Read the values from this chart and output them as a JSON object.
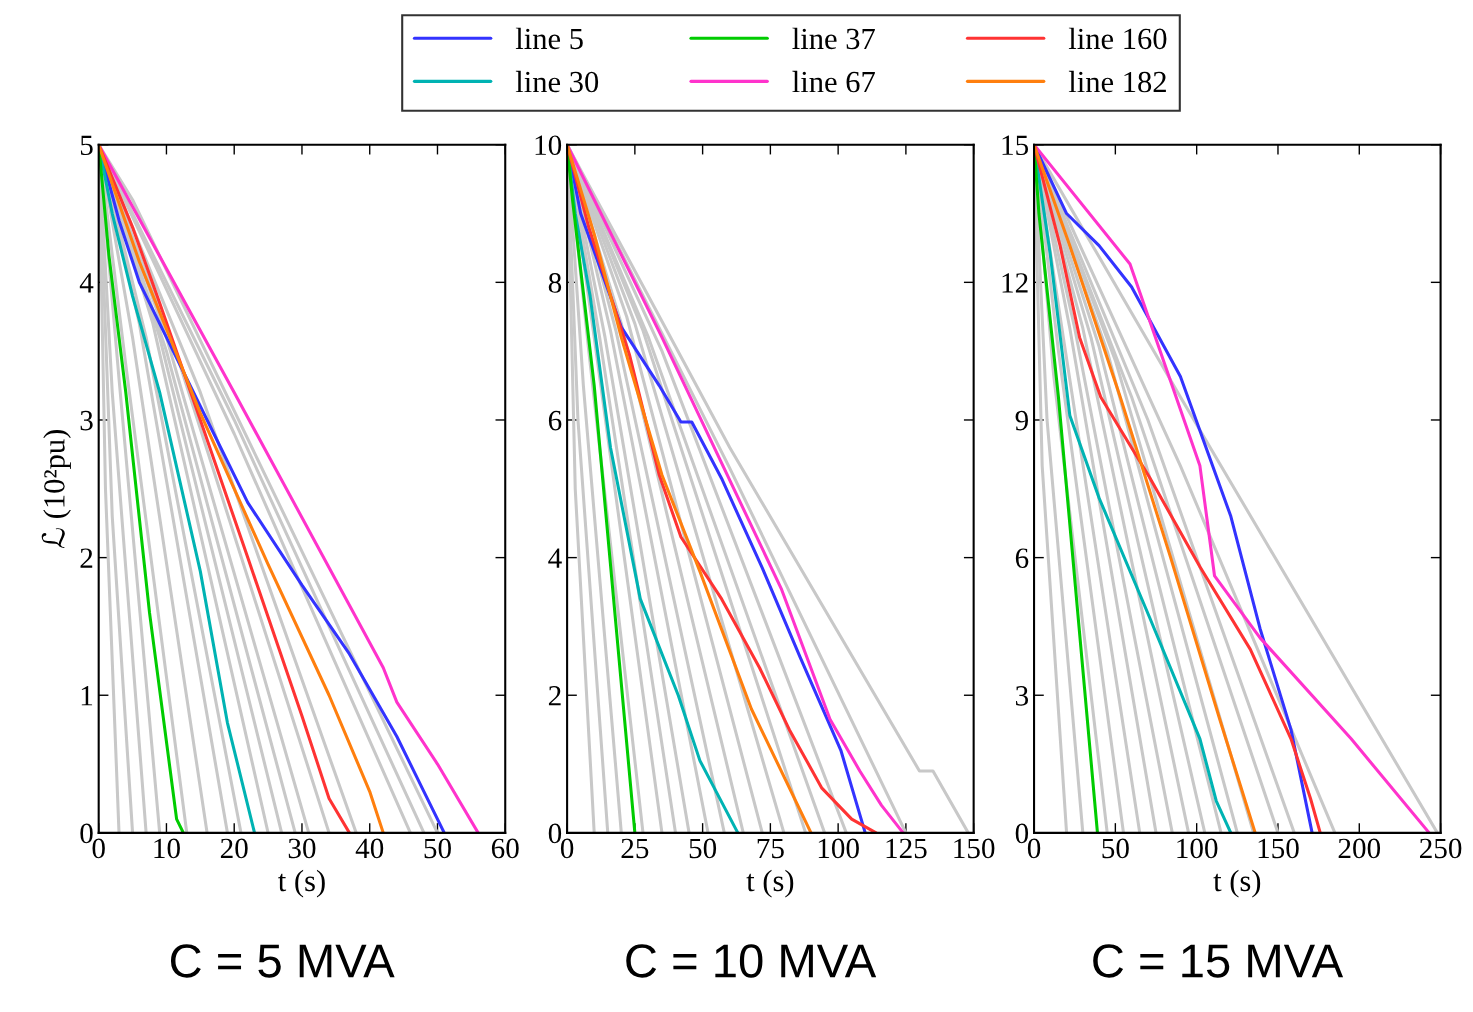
{
  "chart_data": [
    {
      "type": "line",
      "title": "C = 5 MVA",
      "xlabel": "t (s)",
      "ylabel": "ℒ (10²pu)",
      "xlim": [
        0,
        60
      ],
      "ylim": [
        0,
        5
      ],
      "xticks": [
        0,
        10,
        20,
        30,
        40,
        50,
        60
      ],
      "yticks": [
        0,
        1,
        2,
        3,
        4,
        5
      ],
      "legend": "top",
      "series": [
        {
          "color": "#c8c8c8",
          "x": [
            0,
            1,
            3
          ],
          "values": [
            5,
            2.5,
            0
          ]
        },
        {
          "color": "#c8c8c8",
          "x": [
            0,
            2,
            5
          ],
          "values": [
            5,
            2.3,
            0
          ]
        },
        {
          "color": "#c8c8c8",
          "x": [
            0,
            2,
            7
          ],
          "values": [
            5,
            3.2,
            0
          ]
        },
        {
          "color": "#c8c8c8",
          "x": [
            0,
            3,
            9
          ],
          "values": [
            5,
            3.3,
            0
          ]
        },
        {
          "color": "#c8c8c8",
          "x": [
            0,
            4,
            13
          ],
          "values": [
            5,
            3.4,
            0
          ]
        },
        {
          "color": "#c8c8c8",
          "x": [
            0,
            5,
            16
          ],
          "values": [
            5,
            3.6,
            0
          ]
        },
        {
          "color": "#c8c8c8",
          "x": [
            0,
            6,
            19
          ],
          "values": [
            5,
            3.7,
            0
          ]
        },
        {
          "color": "#c8c8c8",
          "x": [
            0,
            7,
            21
          ],
          "values": [
            5,
            3.6,
            0
          ]
        },
        {
          "color": "#c8c8c8",
          "x": [
            0,
            8,
            25
          ],
          "values": [
            5,
            3.7,
            0
          ]
        },
        {
          "color": "#c8c8c8",
          "x": [
            0,
            9,
            27
          ],
          "values": [
            5,
            3.6,
            0
          ]
        },
        {
          "color": "#c8c8c8",
          "x": [
            0,
            10,
            29
          ],
          "values": [
            5,
            3.5,
            0
          ]
        },
        {
          "color": "#c8c8c8",
          "x": [
            0,
            10,
            31
          ],
          "values": [
            5,
            3.6,
            0
          ]
        },
        {
          "color": "#c8c8c8",
          "x": [
            0,
            12,
            34
          ],
          "values": [
            5,
            3.4,
            0
          ]
        },
        {
          "color": "#c8c8c8",
          "x": [
            0,
            15,
            38
          ],
          "values": [
            5,
            3.2,
            0
          ]
        },
        {
          "color": "#c8c8c8",
          "x": [
            0,
            20,
            46
          ],
          "values": [
            5,
            2.9,
            0
          ]
        },
        {
          "color": "#c8c8c8",
          "x": [
            0,
            20,
            48
          ],
          "values": [
            5,
            3.0,
            0
          ]
        },
        {
          "color": "#c8c8c8",
          "x": [
            0,
            5,
            50
          ],
          "values": [
            5,
            4.6,
            0
          ]
        },
        {
          "name": "line 5",
          "color": "#3333ff",
          "x": [
            0,
            3,
            6,
            12,
            16,
            22,
            30,
            37,
            44,
            48,
            51
          ],
          "values": [
            5,
            4.45,
            4.0,
            3.4,
            3.0,
            2.4,
            1.8,
            1.3,
            0.7,
            0.3,
            0
          ]
        },
        {
          "name": "line 30",
          "color": "#00b3b3",
          "x": [
            0,
            2,
            5,
            9,
            15,
            19,
            23
          ],
          "values": [
            5,
            4.5,
            3.9,
            3.2,
            1.9,
            0.8,
            0
          ]
        },
        {
          "name": "line 37",
          "color": "#00cc00",
          "x": [
            0,
            1.5,
            4,
            7.5,
            11.5,
            12.5
          ],
          "values": [
            5,
            4.2,
            3.2,
            1.6,
            0.1,
            0
          ]
        },
        {
          "name": "line 67",
          "color": "#ff33cc",
          "x": [
            0,
            20,
            42,
            44,
            50,
            56
          ],
          "values": [
            5,
            3.2,
            1.2,
            0.95,
            0.5,
            0
          ]
        },
        {
          "name": "line 160",
          "color": "#ff3333",
          "x": [
            0,
            5,
            9,
            15,
            22,
            30,
            34,
            37
          ],
          "values": [
            5,
            4.4,
            3.85,
            3.0,
            2.0,
            0.85,
            0.25,
            0
          ]
        },
        {
          "name": "line 182",
          "color": "#ff7f0e",
          "x": [
            0,
            6,
            15,
            25,
            34,
            40,
            42
          ],
          "values": [
            5,
            4.15,
            3.05,
            1.95,
            1.0,
            0.3,
            0
          ]
        }
      ]
    },
    {
      "type": "line",
      "title": "C = 10 MVA",
      "xlabel": "t (s)",
      "xlim": [
        0,
        150
      ],
      "ylim": [
        0,
        10
      ],
      "xticks": [
        0,
        25,
        50,
        75,
        100,
        125,
        150
      ],
      "yticks": [
        0,
        2,
        4,
        6,
        8,
        10
      ],
      "series": [
        {
          "color": "#c8c8c8",
          "x": [
            0,
            3,
            10
          ],
          "values": [
            10,
            5,
            0
          ]
        },
        {
          "color": "#c8c8c8",
          "x": [
            0,
            4,
            15
          ],
          "values": [
            10,
            6,
            0
          ]
        },
        {
          "color": "#c8c8c8",
          "x": [
            0,
            6,
            20
          ],
          "values": [
            10,
            6.5,
            0
          ]
        },
        {
          "color": "#c8c8c8",
          "x": [
            0,
            8,
            28
          ],
          "values": [
            10,
            7,
            0
          ]
        },
        {
          "color": "#c8c8c8",
          "x": [
            0,
            10,
            35
          ],
          "values": [
            10,
            7.2,
            0
          ]
        },
        {
          "color": "#c8c8c8",
          "x": [
            0,
            12,
            40
          ],
          "values": [
            10,
            7.2,
            0
          ]
        },
        {
          "color": "#c8c8c8",
          "x": [
            0,
            14,
            45
          ],
          "values": [
            10,
            7.2,
            0
          ]
        },
        {
          "color": "#c8c8c8",
          "x": [
            0,
            16,
            52
          ],
          "values": [
            10,
            7.3,
            0
          ]
        },
        {
          "color": "#c8c8c8",
          "x": [
            0,
            18,
            58
          ],
          "values": [
            10,
            7.3,
            0
          ]
        },
        {
          "color": "#c8c8c8",
          "x": [
            0,
            20,
            65
          ],
          "values": [
            10,
            7.4,
            0
          ]
        },
        {
          "color": "#c8c8c8",
          "x": [
            0,
            22,
            72
          ],
          "values": [
            10,
            7.5,
            0
          ]
        },
        {
          "color": "#c8c8c8",
          "x": [
            0,
            25,
            80
          ],
          "values": [
            10,
            7.4,
            0
          ]
        },
        {
          "color": "#c8c8c8",
          "x": [
            0,
            28,
            88
          ],
          "values": [
            10,
            7.3,
            0
          ]
        },
        {
          "color": "#c8c8c8",
          "x": [
            0,
            30,
            95
          ],
          "values": [
            10,
            7.2,
            0
          ]
        },
        {
          "color": "#c8c8c8",
          "x": [
            0,
            35,
            103
          ],
          "values": [
            10,
            7.0,
            0
          ]
        },
        {
          "color": "#c8c8c8",
          "x": [
            0,
            60,
            125
          ],
          "values": [
            10,
            5.3,
            0
          ]
        },
        {
          "color": "#c8c8c8",
          "x": [
            0,
            60,
            130,
            135,
            148
          ],
          "values": [
            10,
            5.6,
            0.9,
            0.9,
            0
          ]
        },
        {
          "color": "#3333ff",
          "x": [
            0,
            5,
            20,
            34,
            42,
            46,
            57,
            72,
            86,
            101,
            110
          ],
          "values": [
            10,
            9,
            7.35,
            6.5,
            5.97,
            5.97,
            5.15,
            3.85,
            2.55,
            1.2,
            0
          ]
        },
        {
          "color": "#00b3b3",
          "x": [
            0,
            3,
            8.5,
            16,
            27,
            41,
            49,
            55,
            63
          ],
          "values": [
            10,
            9,
            7.8,
            5.6,
            3.4,
            2.0,
            1.05,
            0.6,
            0
          ]
        },
        {
          "color": "#00cc00",
          "x": [
            0,
            2,
            10,
            25
          ],
          "values": [
            10,
            9.2,
            6.5,
            0
          ]
        },
        {
          "color": "#ff33cc",
          "x": [
            0,
            35,
            79,
            97,
            108,
            116,
            124
          ],
          "values": [
            10,
            7.2,
            3.55,
            1.65,
            0.9,
            0.4,
            0
          ]
        },
        {
          "color": "#ff3333",
          "x": [
            0,
            8,
            23,
            34,
            42,
            57,
            71,
            82,
            94,
            105,
            114
          ],
          "values": [
            10,
            8.8,
            6.95,
            5.2,
            4.3,
            3.4,
            2.4,
            1.5,
            0.65,
            0.2,
            0
          ]
        },
        {
          "color": "#ff7f0e",
          "x": [
            0,
            10,
            20,
            35,
            49,
            68,
            90
          ],
          "values": [
            10,
            8.7,
            7.2,
            5.2,
            3.8,
            1.8,
            0
          ]
        }
      ]
    },
    {
      "type": "line",
      "title": "C = 15 MVA",
      "xlabel": "t (s)",
      "xlim": [
        0,
        250
      ],
      "ylim": [
        0,
        15
      ],
      "xticks": [
        0,
        50,
        100,
        150,
        200,
        250
      ],
      "yticks": [
        0,
        3,
        6,
        9,
        12,
        15
      ],
      "series": [
        {
          "color": "#c8c8c8",
          "x": [
            0,
            5,
            20
          ],
          "values": [
            15,
            8,
            0
          ]
        },
        {
          "color": "#c8c8c8",
          "x": [
            0,
            8,
            30
          ],
          "values": [
            15,
            9,
            0
          ]
        },
        {
          "color": "#c8c8c8",
          "x": [
            0,
            12,
            45
          ],
          "values": [
            15,
            10,
            0
          ]
        },
        {
          "color": "#c8c8c8",
          "x": [
            0,
            15,
            55
          ],
          "values": [
            15,
            10.5,
            0
          ]
        },
        {
          "color": "#c8c8c8",
          "x": [
            0,
            18,
            65
          ],
          "values": [
            15,
            10.8,
            0
          ]
        },
        {
          "color": "#c8c8c8",
          "x": [
            0,
            22,
            75
          ],
          "values": [
            15,
            11,
            0
          ]
        },
        {
          "color": "#c8c8c8",
          "x": [
            0,
            25,
            85
          ],
          "values": [
            15,
            11,
            0
          ]
        },
        {
          "color": "#c8c8c8",
          "x": [
            0,
            30,
            95
          ],
          "values": [
            15,
            11,
            0
          ]
        },
        {
          "color": "#c8c8c8",
          "x": [
            0,
            35,
            105
          ],
          "values": [
            15,
            10.8,
            0
          ]
        },
        {
          "color": "#c8c8c8",
          "x": [
            0,
            40,
            115
          ],
          "values": [
            15,
            10.6,
            0
          ]
        },
        {
          "color": "#c8c8c8",
          "x": [
            0,
            45,
            125
          ],
          "values": [
            15,
            10.5,
            0
          ]
        },
        {
          "color": "#c8c8c8",
          "x": [
            0,
            50,
            135
          ],
          "values": [
            15,
            10.3,
            0
          ]
        },
        {
          "color": "#c8c8c8",
          "x": [
            0,
            60,
            150
          ],
          "values": [
            15,
            9.5,
            0
          ]
        },
        {
          "color": "#c8c8c8",
          "x": [
            0,
            70,
            160
          ],
          "values": [
            15,
            9.0,
            0
          ]
        },
        {
          "color": "#c8c8c8",
          "x": [
            0,
            90,
            185
          ],
          "values": [
            15,
            8.0,
            0
          ]
        },
        {
          "color": "#c8c8c8",
          "x": [
            0,
            90,
            248
          ],
          "values": [
            15,
            9.5,
            0
          ]
        },
        {
          "color": "#3333ff",
          "x": [
            0,
            20,
            40,
            60,
            90,
            121,
            139,
            158,
            171
          ],
          "values": [
            15,
            13.5,
            12.8,
            11.9,
            9.95,
            6.9,
            4.45,
            2.25,
            0
          ]
        },
        {
          "color": "#00b3b3",
          "x": [
            0,
            5,
            10,
            22,
            40,
            71,
            102,
            112,
            121
          ],
          "values": [
            15,
            13.8,
            12.6,
            9.1,
            7.3,
            4.7,
            2.05,
            0.7,
            0
          ]
        },
        {
          "color": "#00cc00",
          "x": [
            0,
            3,
            15,
            39
          ],
          "values": [
            15,
            13.5,
            9.5,
            0
          ]
        },
        {
          "color": "#ff33cc",
          "x": [
            0,
            59,
            102,
            111,
            139,
            195,
            243
          ],
          "values": [
            15,
            12.4,
            8.0,
            5.6,
            4.25,
            2.05,
            0
          ]
        },
        {
          "color": "#ff3333",
          "x": [
            0,
            16,
            28,
            41,
            71,
            102,
            133,
            158,
            170,
            176
          ],
          "values": [
            15,
            12.8,
            10.8,
            9.5,
            7.75,
            5.8,
            4.0,
            2.05,
            0.75,
            0
          ]
        },
        {
          "color": "#ff7f0e",
          "x": [
            0,
            22,
            53,
            84,
            114,
            136
          ],
          "values": [
            15,
            12.8,
            9.5,
            6.0,
            2.5,
            0
          ]
        }
      ]
    }
  ]
}
